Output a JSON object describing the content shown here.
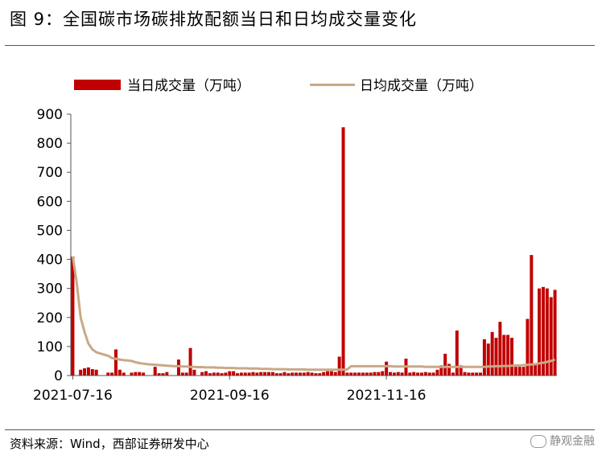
{
  "title": "图 9：全国碳市场碳排放配额当日和日均成交量变化",
  "source": "资料来源：Wind，西部证券研发中心",
  "watermark": "静观金融",
  "legend": {
    "bar_label": "当日成交量（万吨）",
    "line_label": "日均成交量（万吨）"
  },
  "colors": {
    "bar": "#c00000",
    "line": "#c8a986"
  },
  "chart_data": {
    "type": "bar",
    "ylim": [
      0,
      900
    ],
    "yticks": [
      0,
      100,
      200,
      300,
      400,
      500,
      600,
      700,
      800,
      900
    ],
    "xtick_labels": [
      {
        "label": "2021-07-16",
        "index": 0
      },
      {
        "label": "2021-09-16",
        "index": 40
      },
      {
        "label": "2021-11-16",
        "index": 80
      }
    ],
    "series": [
      {
        "name": "当日成交量（万吨）",
        "kind": "bar",
        "values": [
          410,
          0,
          20,
          25,
          28,
          22,
          20,
          0,
          0,
          10,
          10,
          90,
          20,
          10,
          0,
          10,
          12,
          12,
          10,
          0,
          0,
          30,
          8,
          8,
          12,
          0,
          0,
          55,
          10,
          10,
          95,
          20,
          0,
          12,
          15,
          8,
          10,
          10,
          8,
          10,
          15,
          15,
          8,
          10,
          10,
          10,
          12,
          10,
          12,
          12,
          12,
          12,
          8,
          8,
          12,
          8,
          10,
          10,
          10,
          10,
          12,
          10,
          8,
          8,
          12,
          15,
          15,
          12,
          65,
          855,
          10,
          10,
          10,
          10,
          10,
          10,
          10,
          12,
          12,
          15,
          48,
          12,
          10,
          12,
          10,
          58,
          10,
          12,
          10,
          10,
          12,
          10,
          10,
          20,
          35,
          75,
          40,
          10,
          155,
          35,
          12,
          10,
          10,
          10,
          10,
          125,
          110,
          150,
          130,
          185,
          140,
          140,
          130,
          30,
          30,
          30,
          195,
          415,
          40,
          300,
          305,
          300,
          270,
          295
        ]
      },
      {
        "name": "日均成交量（万吨）",
        "kind": "line",
        "values": [
          410,
          320,
          200,
          150,
          110,
          90,
          80,
          76,
          72,
          68,
          60,
          58,
          55,
          53,
          52,
          50,
          46,
          43,
          41,
          39,
          38,
          37,
          36,
          35,
          34,
          33,
          32,
          32,
          31,
          31,
          30,
          30,
          29,
          29,
          28,
          28,
          28,
          27,
          27,
          26,
          26,
          26,
          25,
          25,
          25,
          24,
          24,
          24,
          23,
          23,
          23,
          22,
          22,
          22,
          22,
          21,
          21,
          21,
          21,
          21,
          20,
          20,
          20,
          20,
          20,
          20,
          20,
          20,
          20,
          20,
          21,
          32,
          32,
          32,
          32,
          32,
          32,
          32,
          32,
          32,
          32,
          32,
          31,
          31,
          31,
          31,
          31,
          31,
          31,
          31,
          30,
          30,
          30,
          30,
          30,
          30,
          30,
          30,
          30,
          30,
          30,
          30,
          30,
          30,
          30,
          30,
          31,
          31,
          32,
          32,
          33,
          33,
          34,
          35,
          35,
          36,
          37,
          38,
          39,
          42,
          44,
          47,
          50,
          55
        ]
      }
    ]
  }
}
